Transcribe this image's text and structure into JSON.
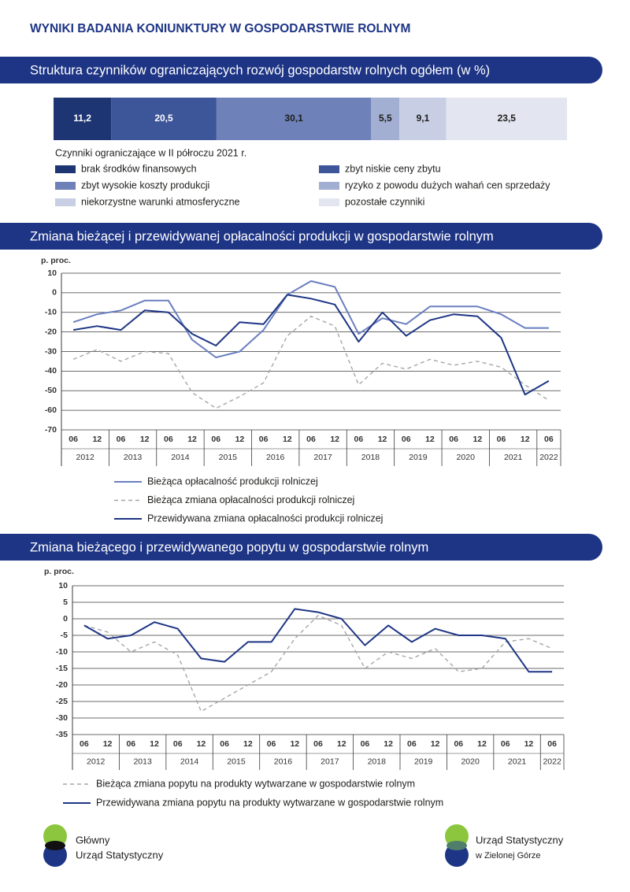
{
  "header": {
    "title": "WYNIKI BADANIA KONIUNKTURY W GOSPODARSTWIE ROLNYM"
  },
  "chart_data": [
    {
      "type": "stacked_bar",
      "title": "Struktura czynników ograniczających rozwój gospodarstw rolnych ogółem (w %)",
      "legend_title": "Czynniki ograniczające w II półroczu 2021 r.",
      "series": [
        {
          "name": "brak środków finansowych",
          "color": "#1e3574",
          "values": [
            11.2
          ],
          "value_labels": [
            "11,2"
          ]
        },
        {
          "name": "zbyt niskie ceny zbytu",
          "color": "#3d5599",
          "values": [
            20.5
          ],
          "value_labels": [
            "20,5"
          ]
        },
        {
          "name": "zbyt wysokie koszty produkcji",
          "color": "#6e82b9",
          "values": [
            30.1
          ],
          "value_labels": [
            "30,1"
          ]
        },
        {
          "name": "ryzyko z powodu dużych wahań cen sprzedaży",
          "color": "#a2aed2",
          "values": [
            5.5
          ],
          "value_labels": [
            "5,5"
          ]
        },
        {
          "name": "niekorzystne warunki atmosferyczne",
          "color": "#c8cfe5",
          "values": [
            9.1
          ],
          "value_labels": [
            "9,1"
          ]
        },
        {
          "name": "pozostałe czynniki",
          "color": "#e3e6f1",
          "values": [
            23.5
          ],
          "value_labels": [
            "23,5"
          ]
        }
      ]
    },
    {
      "type": "line",
      "title": "Zmiana bieżącej i przewidywanej opłacalności produkcji  w gospodarstwie rolnym",
      "y_label": "p. proc.",
      "categories": [
        "06",
        "12",
        "06",
        "12",
        "06",
        "12",
        "06",
        "12",
        "06",
        "12",
        "06",
        "12",
        "06",
        "12",
        "06",
        "12",
        "06",
        "12",
        "06",
        "12",
        "06"
      ],
      "year_labels": [
        "2012",
        "2013",
        "2014",
        "2015",
        "2016",
        "2017",
        "2018",
        "2019",
        "2020",
        "2021",
        "2022"
      ],
      "ylim": [
        -70,
        10
      ],
      "yticks": [
        -70,
        -60,
        -50,
        -40,
        -30,
        -20,
        -10,
        0,
        10
      ],
      "grid": true,
      "series": [
        {
          "name": "Bieżąca opłacalność produkcji rolniczej",
          "color": "#6a7fc0",
          "style": "solid",
          "values": [
            -15,
            -11,
            -9,
            -4,
            -4,
            -24,
            -33,
            -30,
            -19,
            -1,
            6,
            3,
            -21,
            -13,
            -16,
            -7,
            -7,
            -7,
            -11,
            -18,
            -18
          ]
        },
        {
          "name": "Bieżąca zmiana opłacalności produkcji rolniczej",
          "color": "#a6a6a6",
          "style": "dashed",
          "values": [
            -34,
            -29,
            -35,
            -30,
            -31,
            -51,
            -59,
            -53,
            -46,
            -22,
            -12,
            -17,
            -47,
            -36,
            -39,
            -34,
            -37,
            -35,
            -38,
            -47,
            -55
          ]
        },
        {
          "name": "Przewidywana zmiana opłacalności produkcji rolniczej",
          "color": "#1e3585",
          "style": "solid",
          "values": [
            -19,
            -17,
            -19,
            -9,
            -10,
            -21,
            -27,
            -15,
            -16,
            -1,
            -3,
            -6,
            -25,
            -10,
            -22,
            -14,
            -11,
            -12,
            -23,
            -52,
            -45
          ]
        }
      ]
    },
    {
      "type": "line",
      "title": "Zmiana bieżącego i przewidywanego popytu w gospodarstwie rolnym",
      "y_label": "p. proc.",
      "categories": [
        "06",
        "12",
        "06",
        "12",
        "06",
        "12",
        "06",
        "12",
        "06",
        "12",
        "06",
        "12",
        "06",
        "12",
        "06",
        "12",
        "06",
        "12",
        "06",
        "12",
        "06"
      ],
      "year_labels": [
        "2012",
        "2013",
        "2014",
        "2015",
        "2016",
        "2017",
        "2018",
        "2019",
        "2020",
        "2021",
        "2022"
      ],
      "ylim": [
        -35,
        10
      ],
      "yticks": [
        -35,
        -30,
        -25,
        -20,
        -15,
        -10,
        -5,
        0,
        5,
        10
      ],
      "grid": true,
      "series": [
        {
          "name": "Bieżąca zmiana popytu na produkty wytwarzane w gospodarstwie rolnym",
          "color": "#a6a6a6",
          "style": "dashed",
          "values": [
            -2,
            -4,
            -10,
            -7,
            -11,
            -28,
            -24,
            -20,
            -16,
            -6,
            1,
            -2,
            -15,
            -10,
            -12,
            -9,
            -16,
            -15,
            -7,
            -6,
            -9
          ]
        },
        {
          "name": "Przewidywana zmiana popytu na produkty wytwarzane w gospodarstwie rolnym",
          "color": "#1e3585",
          "style": "solid",
          "values": [
            -2,
            -6,
            -5,
            -1,
            -3,
            -12,
            -13,
            -7,
            -7,
            3,
            2,
            0,
            -8,
            -2,
            -7,
            -3,
            -5,
            -5,
            -6,
            -16,
            -16
          ]
        }
      ]
    }
  ],
  "footer": {
    "left_logo": [
      "Główny",
      "Urząd Statystyczny"
    ],
    "right_logo": [
      "Urząd Statystyczny",
      "w Zielonej Górze"
    ]
  }
}
